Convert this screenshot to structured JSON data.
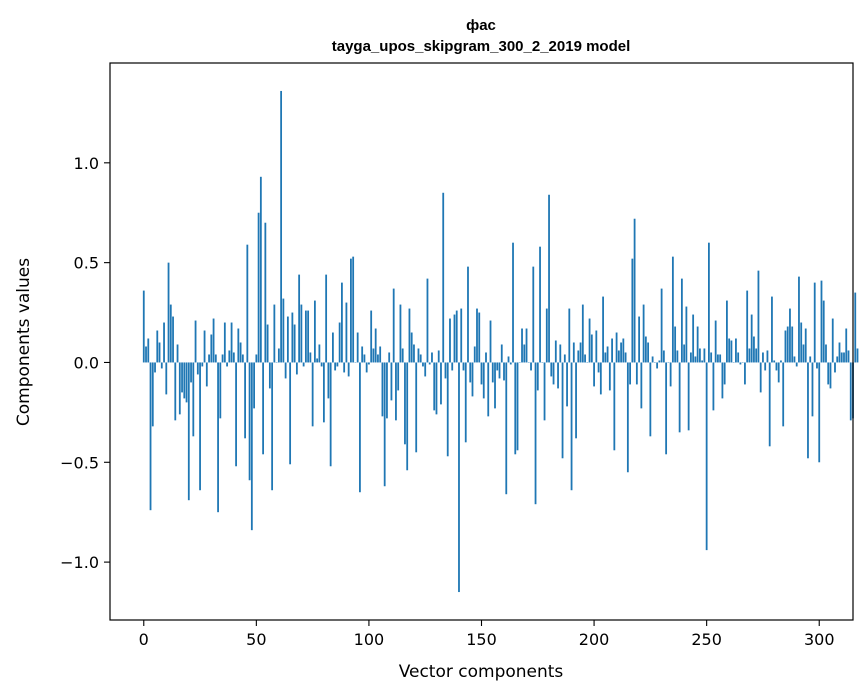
{
  "chart_data": {
    "type": "bar",
    "title": "фас",
    "subtitle": "tayga_upos_skipgram_300_2_2019 model",
    "xlabel": "Vector components",
    "ylabel": "Components values",
    "xlim": [
      -15,
      315
    ],
    "ylim": [
      -1.29,
      1.5
    ],
    "x_ticks": [
      0,
      50,
      100,
      150,
      200,
      250,
      300
    ],
    "x_tick_labels": [
      "0",
      "50",
      "100",
      "150",
      "200",
      "250",
      "300"
    ],
    "y_ticks": [
      -1.0,
      -0.5,
      0.0,
      0.5,
      1.0
    ],
    "y_tick_labels": [
      "−1.0",
      "−0.5",
      "0.0",
      "0.5",
      "1.0"
    ],
    "bar_color": "#1f77b4",
    "grid": false,
    "x_start": 0,
    "values": [
      0.36,
      0.08,
      0.12,
      -0.74,
      -0.32,
      -0.05,
      0.16,
      0.1,
      -0.03,
      0.2,
      -0.16,
      0.5,
      0.29,
      0.23,
      -0.29,
      0.09,
      -0.26,
      -0.15,
      -0.18,
      -0.2,
      -0.69,
      -0.1,
      -0.37,
      0.21,
      -0.06,
      -0.64,
      -0.02,
      0.16,
      -0.12,
      0.04,
      0.14,
      0.22,
      0.04,
      -0.75,
      -0.28,
      0.04,
      0.2,
      -0.02,
      0.06,
      0.2,
      0.05,
      -0.52,
      0.17,
      0.1,
      0.04,
      -0.38,
      0.59,
      -0.59,
      -0.84,
      -0.23,
      0.04,
      0.75,
      0.93,
      -0.46,
      0.7,
      0.19,
      -0.13,
      -0.64,
      0.29,
      0.0,
      0.07,
      1.36,
      0.32,
      -0.08,
      0.23,
      -0.51,
      0.25,
      0.19,
      -0.06,
      0.44,
      0.29,
      -0.02,
      0.26,
      0.26,
      0.05,
      -0.32,
      0.31,
      0.02,
      0.09,
      -0.02,
      -0.3,
      0.44,
      -0.18,
      -0.52,
      0.15,
      -0.04,
      -0.02,
      0.2,
      0.4,
      -0.05,
      0.3,
      -0.07,
      0.52,
      0.53,
      0.0,
      0.15,
      -0.65,
      0.08,
      0.04,
      -0.05,
      -0.01,
      0.26,
      0.07,
      0.17,
      0.04,
      0.08,
      -0.27,
      -0.62,
      -0.28,
      0.05,
      -0.19,
      0.37,
      -0.29,
      -0.14,
      0.29,
      0.07,
      -0.41,
      -0.54,
      0.27,
      0.15,
      0.09,
      -0.45,
      0.07,
      0.04,
      -0.02,
      -0.07,
      0.42,
      -0.01,
      0.05,
      -0.24,
      -0.26,
      0.06,
      -0.21,
      0.85,
      -0.08,
      -0.47,
      0.22,
      -0.04,
      0.24,
      0.26,
      -1.15,
      0.27,
      -0.04,
      -0.4,
      0.48,
      -0.1,
      -0.17,
      0.08,
      0.27,
      0.25,
      -0.11,
      -0.18,
      0.05,
      -0.27,
      0.21,
      -0.1,
      -0.23,
      -0.04,
      -0.08,
      0.09,
      -0.09,
      -0.66,
      0.03,
      -0.01,
      0.6,
      -0.46,
      -0.44,
      0.0,
      0.17,
      0.09,
      0.17,
      0.0,
      -0.04,
      0.48,
      -0.71,
      -0.14,
      0.58,
      0.0,
      -0.29,
      0.27,
      0.84,
      -0.07,
      -0.11,
      0.11,
      -0.13,
      0.09,
      -0.48,
      0.04,
      -0.22,
      0.27,
      -0.64,
      0.1,
      -0.38,
      0.06,
      0.1,
      0.29,
      0.04,
      0.0,
      0.22,
      0.14,
      -0.12,
      0.16,
      -0.05,
      -0.16,
      0.33,
      0.05,
      0.08,
      -0.14,
      0.12,
      -0.44,
      0.15,
      0.06,
      0.1,
      0.12,
      0.05,
      -0.55,
      -0.11,
      0.52,
      0.72,
      -0.11,
      0.23,
      -0.23,
      0.29,
      0.13,
      0.1,
      -0.37,
      0.03,
      0.0,
      -0.03,
      0.01,
      0.37,
      0.06,
      -0.46,
      0.0,
      -0.12,
      0.53,
      0.18,
      0.06,
      -0.35,
      0.42,
      0.09,
      0.28,
      -0.34,
      0.05,
      0.24,
      0.03,
      0.18,
      0.07,
      0.01,
      0.07,
      -0.94,
      0.6,
      0.05,
      -0.24,
      0.21,
      0.04,
      0.04,
      -0.18,
      -0.11,
      0.31,
      0.12,
      0.11,
      0.0,
      0.12,
      0.05,
      -0.01,
      0.0,
      -0.11,
      0.36,
      0.07,
      0.24,
      0.13,
      0.07,
      0.46,
      -0.15,
      0.05,
      -0.04,
      0.06,
      -0.42,
      0.33,
      0.01,
      -0.04,
      -0.1,
      0.01,
      -0.32,
      0.16,
      0.18,
      0.27,
      0.18,
      0.03,
      -0.02,
      0.43,
      0.2,
      0.09,
      0.17,
      -0.48,
      0.03,
      -0.27,
      0.4,
      -0.03,
      -0.5,
      0.41,
      0.31,
      0.09,
      -0.11,
      -0.13,
      0.22,
      -0.05,
      0.03,
      0.1,
      0.05,
      0.05,
      0.17,
      0.06,
      -0.29,
      -0.28,
      0.35,
      0.07
    ]
  }
}
